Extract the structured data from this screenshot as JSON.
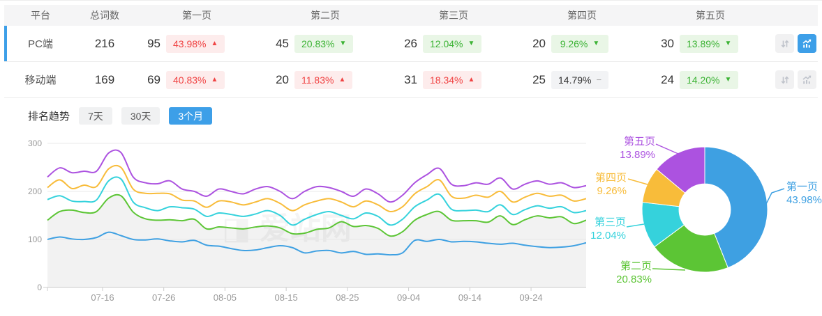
{
  "table": {
    "columns": [
      "平台",
      "总词数",
      "第一页",
      "第二页",
      "第三页",
      "第四页",
      "第五页"
    ],
    "rows": [
      {
        "platform": "PC端",
        "total": "216",
        "active": true,
        "pages": [
          {
            "count": "95",
            "pct": "43.98%",
            "trend": "up"
          },
          {
            "count": "45",
            "pct": "20.83%",
            "trend": "down"
          },
          {
            "count": "26",
            "pct": "12.04%",
            "trend": "down"
          },
          {
            "count": "20",
            "pct": "9.26%",
            "trend": "down"
          },
          {
            "count": "30",
            "pct": "13.89%",
            "trend": "down"
          }
        ],
        "actions": {
          "sort_active": false,
          "chart_active": true
        }
      },
      {
        "platform": "移动端",
        "total": "169",
        "active": false,
        "pages": [
          {
            "count": "69",
            "pct": "40.83%",
            "trend": "up"
          },
          {
            "count": "20",
            "pct": "11.83%",
            "trend": "up"
          },
          {
            "count": "31",
            "pct": "18.34%",
            "trend": "up"
          },
          {
            "count": "25",
            "pct": "14.79%",
            "trend": "flat"
          },
          {
            "count": "24",
            "pct": "14.20%",
            "trend": "down"
          }
        ],
        "actions": {
          "sort_active": false,
          "chart_active": false
        }
      }
    ]
  },
  "trend": {
    "title": "排名趋势",
    "tabs": [
      {
        "label": "7天",
        "active": false
      },
      {
        "label": "30天",
        "active": false
      },
      {
        "label": "3个月",
        "active": true
      }
    ]
  },
  "watermark": "爱站网",
  "colors": {
    "accent": "#3d9fe8",
    "up_red": "#f04343",
    "down_green": "#3cb335",
    "grid": "#e8e8e8",
    "axis": "#cccccc",
    "axis_text": "#999999"
  },
  "chart_data": [
    {
      "type": "line",
      "title": "排名趋势 3个月",
      "stacked_cumulative": true,
      "ylim": [
        0,
        300
      ],
      "y_ticks": [
        0,
        100,
        200,
        300
      ],
      "x_tick_labels": [
        "07-16",
        "07-26",
        "08-05",
        "08-15",
        "08-25",
        "09-04",
        "09-14",
        "09-24"
      ],
      "x_tick_days": [
        9,
        19,
        29,
        39,
        49,
        59,
        69,
        79
      ],
      "total_days": 88,
      "sample_step_days": 2,
      "grid": true,
      "series": [
        {
          "name": "第一页",
          "color": "#3ea0e2",
          "area": false,
          "values": [
            100,
            105,
            101,
            100,
            104,
            115,
            108,
            100,
            99,
            101,
            97,
            95,
            98,
            88,
            86,
            81,
            77,
            78,
            83,
            87,
            83,
            72,
            76,
            77,
            72,
            75,
            69,
            70,
            68,
            72,
            98,
            96,
            100,
            95,
            96,
            95,
            92,
            90,
            92,
            88,
            85,
            83,
            84,
            87,
            93
          ]
        },
        {
          "name": "第二页",
          "color": "#5cc535",
          "area": true,
          "values": [
            140,
            158,
            161,
            156,
            158,
            186,
            191,
            157,
            143,
            140,
            141,
            139,
            142,
            122,
            126,
            124,
            122,
            126,
            128,
            124,
            112,
            113,
            121,
            124,
            137,
            127,
            129,
            123,
            107,
            116,
            140,
            152,
            158,
            140,
            139,
            139,
            136,
            149,
            131,
            141,
            149,
            145,
            147,
            133,
            140
          ]
        },
        {
          "name": "第三页",
          "color": "#35d2dc",
          "area": false,
          "values": [
            183,
            191,
            180,
            179,
            182,
            222,
            226,
            178,
            166,
            160,
            168,
            166,
            163,
            148,
            155,
            152,
            148,
            153,
            160,
            150,
            130,
            142,
            152,
            158,
            150,
            143,
            155,
            148,
            130,
            142,
            168,
            182,
            194,
            163,
            160,
            161,
            158,
            172,
            152,
            162,
            170,
            165,
            168,
            156,
            160
          ]
        },
        {
          "name": "第四页",
          "color": "#f8bc3a",
          "area": false,
          "values": [
            208,
            224,
            206,
            213,
            210,
            247,
            250,
            205,
            196,
            196,
            195,
            182,
            180,
            167,
            180,
            178,
            172,
            178,
            185,
            175,
            160,
            172,
            180,
            185,
            178,
            168,
            180,
            172,
            158,
            168,
            195,
            210,
            224,
            190,
            186,
            192,
            188,
            200,
            178,
            188,
            196,
            190,
            192,
            180,
            185
          ]
        },
        {
          "name": "第五页",
          "color": "#ac52e0",
          "area": false,
          "values": [
            230,
            249,
            239,
            242,
            242,
            280,
            281,
            230,
            218,
            216,
            222,
            205,
            200,
            190,
            205,
            200,
            195,
            205,
            210,
            200,
            185,
            200,
            210,
            208,
            200,
            190,
            205,
            195,
            178,
            192,
            218,
            235,
            248,
            215,
            212,
            218,
            215,
            228,
            205,
            215,
            222,
            215,
            218,
            208,
            212
          ]
        }
      ]
    },
    {
      "type": "pie",
      "donut": true,
      "inner_radius_ratio": 0.41,
      "start_angle": "top",
      "direction": "clockwise",
      "slices": [
        {
          "label": "第一页",
          "pct": "43.98%",
          "value": 43.98,
          "color": "#3ea0e2"
        },
        {
          "label": "第二页",
          "pct": "20.83%",
          "value": 20.83,
          "color": "#5cc535"
        },
        {
          "label": "第三页",
          "pct": "12.04%",
          "value": 12.04,
          "color": "#35d2dc"
        },
        {
          "label": "第四页",
          "pct": "9.26%",
          "value": 9.26,
          "color": "#f8bc3a"
        },
        {
          "label": "第五页",
          "pct": "13.89%",
          "value": 13.89,
          "color": "#ac52e0"
        }
      ]
    }
  ]
}
